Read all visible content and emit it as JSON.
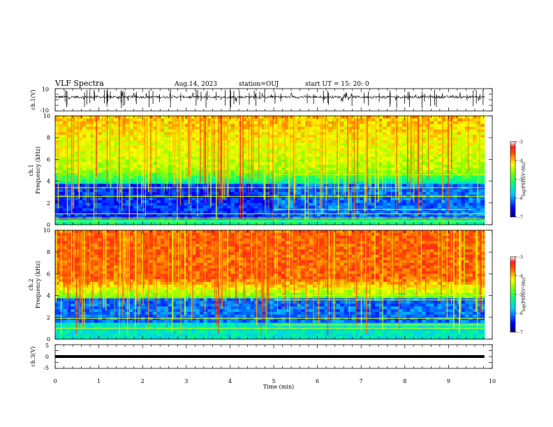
{
  "header": {
    "title": "VLF Spectra",
    "date": "Aug.14, 2023",
    "station": "station=OUJ",
    "start": "start  UT  =   15: 20: 0"
  },
  "chart_data": [
    {
      "type": "line",
      "panel": "ch1-waveform",
      "ylabel": "ch.1(V)",
      "ylim": [
        -10,
        10
      ],
      "yticks": [
        "10",
        "-10"
      ],
      "xlim": [
        0,
        10
      ],
      "baseline": 2.5
    },
    {
      "type": "heatmap",
      "panel": "ch1-spectrogram",
      "ylabel_channel": "ch.1",
      "ylabel": "Frequency (kHz)",
      "ylim": [
        0,
        10
      ],
      "yticks": [
        "0",
        "2",
        "4",
        "6",
        "8",
        "10"
      ],
      "xlim": [
        0,
        9.82
      ],
      "colorbar": {
        "min": -7,
        "max": -3,
        "ticks": [
          "-3",
          "-4",
          "-5",
          "-6",
          "-7"
        ],
        "label": "log(PSD)(V²/Hz)"
      },
      "bands": [
        {
          "f": 0.3,
          "x0": 0.0,
          "x1": 9.82
        },
        {
          "f": 0.6,
          "x0": 0.0,
          "x1": 9.82
        },
        {
          "f": 1.0,
          "x0": 0.0,
          "x1": 9.82
        },
        {
          "f": 1.4,
          "x0": 5.0,
          "x1": 9.5
        },
        {
          "f": 2.6,
          "x0": 0.0,
          "x1": 9.82
        },
        {
          "f": 3.4,
          "x0": 0.0,
          "x1": 9.82
        },
        {
          "f": 4.6,
          "x0": 5.0,
          "x1": 9.82
        }
      ]
    },
    {
      "type": "heatmap",
      "panel": "ch2-spectrogram",
      "ylabel_channel": "ch.2",
      "ylabel": "Frequency (kHz)",
      "ylim": [
        0,
        10
      ],
      "yticks": [
        "0",
        "2",
        "4",
        "6",
        "8",
        "10"
      ],
      "xlim": [
        0,
        9.82
      ],
      "colorbar": {
        "min": -7,
        "max": -3,
        "ticks": [
          "-3",
          "-4",
          "-5",
          "-6",
          "-7"
        ],
        "label": "log(PSD)(V²/Hz)"
      },
      "bands": [
        {
          "f": 1.0,
          "x0": 0.0,
          "x1": 9.82
        },
        {
          "f": 1.3,
          "x0": 5.0,
          "x1": 9.82
        },
        {
          "f": 1.9,
          "x0": 0.0,
          "x1": 9.82
        },
        {
          "f": 3.6,
          "x0": 5.0,
          "x1": 9.82
        },
        {
          "f": 4.0,
          "x0": 5.0,
          "x1": 9.82
        }
      ]
    },
    {
      "type": "line",
      "panel": "ch3-waveform",
      "ylabel": "ch.3(V)",
      "ylim": [
        -5,
        5
      ],
      "yticks": [
        "5",
        "0",
        "-5"
      ],
      "xlim": [
        0,
        10
      ],
      "baseline": 0,
      "xlabel": "Time (min)",
      "xticks": [
        "0",
        "1",
        "2",
        "3",
        "4",
        "5",
        "6",
        "7",
        "8",
        "9",
        "10"
      ]
    }
  ]
}
